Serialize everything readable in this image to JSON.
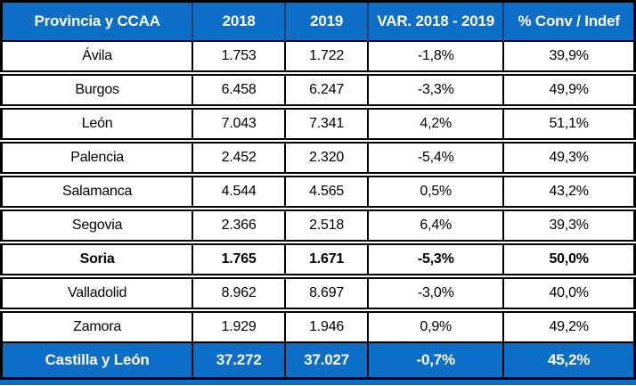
{
  "colors": {
    "header_bg": "#0d6ec8",
    "header_text": "#ffffff",
    "header_divider": "#0b3f70",
    "row_bg": "#ffffff",
    "row_text": "#000000",
    "border": "#000000",
    "footer_bg": "#0d6ec8",
    "footer_text": "#ffffff"
  },
  "table": {
    "columns": [
      "Provincia y CCAA",
      "2018",
      "2019",
      "VAR. 2018 - 2019",
      "% Conv / Indef"
    ],
    "rows": [
      {
        "name": "Ávila",
        "y2018": "1.753",
        "y2019": "1.722",
        "variation": "-1,8%",
        "conv": "39,9%",
        "bold": false
      },
      {
        "name": "Burgos",
        "y2018": "6.458",
        "y2019": "6.247",
        "variation": "-3,3%",
        "conv": "49,9%",
        "bold": false
      },
      {
        "name": "León",
        "y2018": "7.043",
        "y2019": "7.341",
        "variation": "4,2%",
        "conv": "51,1%",
        "bold": false
      },
      {
        "name": "Palencia",
        "y2018": "2.452",
        "y2019": "2.320",
        "variation": "-5,4%",
        "conv": "49,3%",
        "bold": false
      },
      {
        "name": "Salamanca",
        "y2018": "4.544",
        "y2019": "4.565",
        "variation": "0,5%",
        "conv": "43,2%",
        "bold": false
      },
      {
        "name": "Segovia",
        "y2018": "2.366",
        "y2019": "2.518",
        "variation": "6,4%",
        "conv": "39,3%",
        "bold": false
      },
      {
        "name": "Soria",
        "y2018": "1.765",
        "y2019": "1.671",
        "variation": "-5,3%",
        "conv": "50,0%",
        "bold": true
      },
      {
        "name": "Valladolid",
        "y2018": "8.962",
        "y2019": "8.697",
        "variation": "-3,0%",
        "conv": "40,0%",
        "bold": false
      },
      {
        "name": "Zamora",
        "y2018": "1.929",
        "y2019": "1.946",
        "variation": "0,9%",
        "conv": "49,2%",
        "bold": false
      }
    ],
    "footer": {
      "name": "Castilla y León",
      "y2018": "37.272",
      "y2019": "37.027",
      "variation": "-0,7%",
      "conv": "45,2%"
    }
  },
  "chart_data": {
    "type": "table",
    "title": "",
    "columns": [
      "Provincia y CCAA",
      "2018",
      "2019",
      "VAR. 2018 - 2019",
      "% Conv / Indef"
    ],
    "rows": [
      [
        "Ávila",
        1753,
        1722,
        "-1,8%",
        "39,9%"
      ],
      [
        "Burgos",
        6458,
        6247,
        "-3,3%",
        "49,9%"
      ],
      [
        "León",
        7043,
        7341,
        "4,2%",
        "51,1%"
      ],
      [
        "Palencia",
        2452,
        2320,
        "-5,4%",
        "49,3%"
      ],
      [
        "Salamanca",
        4544,
        4565,
        "0,5%",
        "43,2%"
      ],
      [
        "Segovia",
        2366,
        2518,
        "6,4%",
        "39,3%"
      ],
      [
        "Soria",
        1765,
        1671,
        "-5,3%",
        "50,0%"
      ],
      [
        "Valladolid",
        8962,
        8697,
        "-3,0%",
        "40,0%"
      ],
      [
        "Zamora",
        1929,
        1946,
        "0,9%",
        "49,2%"
      ]
    ],
    "totals_row": [
      "Castilla y León",
      37272,
      37027,
      "-0,7%",
      "45,2%"
    ],
    "highlighted_row": "Soria"
  }
}
